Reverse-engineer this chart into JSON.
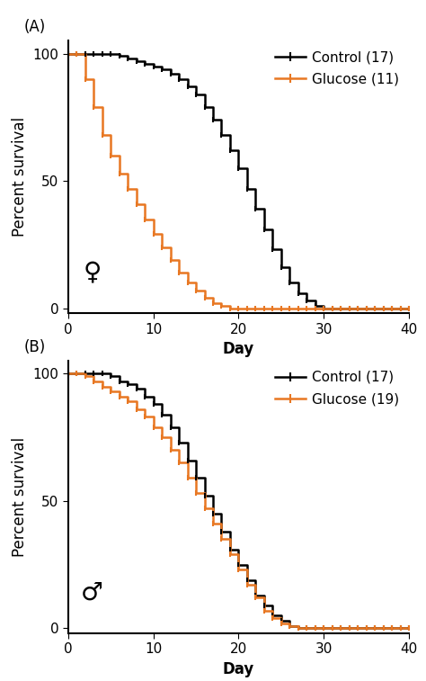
{
  "panel_A": {
    "title": "(A)",
    "sex_symbol": "♀",
    "control_label": "Control (17)",
    "glucose_label": "Glucose (11)",
    "control_color": "#000000",
    "glucose_color": "#E87722",
    "control_x": [
      0,
      1,
      2,
      3,
      4,
      5,
      6,
      7,
      8,
      9,
      10,
      11,
      12,
      13,
      14,
      15,
      16,
      17,
      18,
      19,
      20,
      21,
      22,
      23,
      24,
      25,
      26,
      27,
      28,
      29,
      30,
      31,
      32,
      33,
      34,
      35,
      36,
      37,
      38,
      39,
      40
    ],
    "control_y": [
      100,
      100,
      100,
      100,
      100,
      100,
      99,
      98,
      97,
      96,
      95,
      94,
      92,
      90,
      87,
      84,
      79,
      74,
      68,
      62,
      55,
      47,
      39,
      31,
      23,
      16,
      10,
      6,
      3,
      1,
      0,
      0,
      0,
      0,
      0,
      0,
      0,
      0,
      0,
      0,
      0
    ],
    "glucose_x": [
      0,
      1,
      2,
      3,
      4,
      5,
      6,
      7,
      8,
      9,
      10,
      11,
      12,
      13,
      14,
      15,
      16,
      17,
      18,
      19,
      20,
      21,
      22,
      23,
      24,
      25,
      26,
      27,
      28,
      29,
      30,
      31,
      32,
      33,
      34,
      35,
      36,
      37,
      38,
      39,
      40
    ],
    "glucose_y": [
      100,
      100,
      90,
      79,
      68,
      60,
      53,
      47,
      41,
      35,
      29,
      24,
      19,
      14,
      10,
      7,
      4,
      2,
      1,
      0,
      0,
      0,
      0,
      0,
      0,
      0,
      0,
      0,
      0,
      0,
      0,
      0,
      0,
      0,
      0,
      0,
      0,
      0,
      0,
      0,
      0
    ]
  },
  "panel_B": {
    "title": "(B)",
    "sex_symbol": "♂",
    "control_label": "Control (17)",
    "glucose_label": "Glucose (19)",
    "control_color": "#000000",
    "glucose_color": "#E87722",
    "control_x": [
      0,
      1,
      2,
      3,
      4,
      5,
      6,
      7,
      8,
      9,
      10,
      11,
      12,
      13,
      14,
      15,
      16,
      17,
      18,
      19,
      20,
      21,
      22,
      23,
      24,
      25,
      26,
      27,
      28,
      29,
      30,
      31,
      32,
      33,
      34,
      35,
      36,
      37,
      38,
      39,
      40
    ],
    "control_y": [
      100,
      100,
      100,
      100,
      100,
      99,
      97,
      96,
      94,
      91,
      88,
      84,
      79,
      73,
      66,
      59,
      52,
      45,
      38,
      31,
      25,
      19,
      13,
      9,
      5,
      3,
      1,
      0,
      0,
      0,
      0,
      0,
      0,
      0,
      0,
      0,
      0,
      0,
      0,
      0,
      0
    ],
    "glucose_x": [
      0,
      1,
      2,
      3,
      4,
      5,
      6,
      7,
      8,
      9,
      10,
      11,
      12,
      13,
      14,
      15,
      16,
      17,
      18,
      19,
      20,
      21,
      22,
      23,
      24,
      25,
      26,
      27,
      28,
      29,
      30,
      31,
      32,
      33,
      34,
      35,
      36,
      37,
      38,
      39,
      40
    ],
    "glucose_y": [
      100,
      100,
      99,
      97,
      95,
      93,
      91,
      89,
      86,
      83,
      79,
      75,
      70,
      65,
      59,
      53,
      47,
      41,
      35,
      29,
      23,
      17,
      12,
      7,
      4,
      2,
      1,
      0,
      0,
      0,
      0,
      0,
      0,
      0,
      0,
      0,
      0,
      0,
      0,
      0,
      0
    ]
  },
  "ylabel": "Percent survival",
  "xlabel": "Day",
  "xlim": [
    0,
    40
  ],
  "ylim": [
    -2,
    105
  ],
  "xticks": [
    0,
    10,
    20,
    30,
    40
  ],
  "yticks": [
    0,
    50,
    100
  ],
  "linewidth": 1.8,
  "fontsize_label": 12,
  "fontsize_tick": 11,
  "fontsize_panel": 12,
  "fontsize_legend": 11,
  "fontsize_symbol": 20,
  "background_color": "#ffffff"
}
